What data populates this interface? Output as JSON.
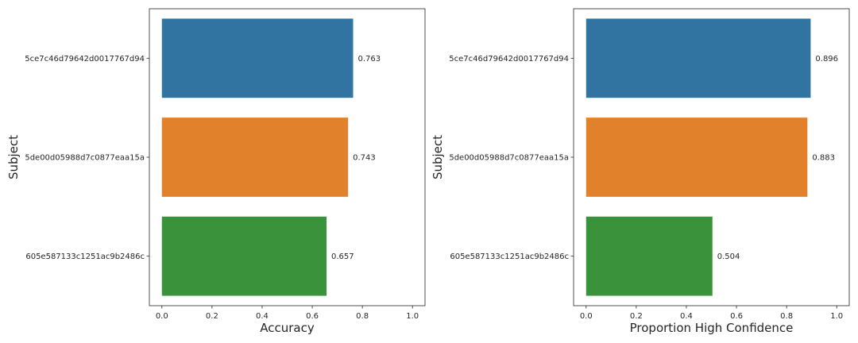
{
  "chart_data": [
    {
      "type": "bar",
      "orientation": "horizontal",
      "categories": [
        "5ce7c46d79642d0017767d94",
        "5de00d05988d7c0877eaa15a",
        "605e587133c1251ac9b2486c"
      ],
      "values": [
        0.763,
        0.743,
        0.657
      ],
      "data_labels": [
        "0.763",
        "0.743",
        "0.657"
      ],
      "xlabel": "Accuracy",
      "ylabel": "Subject",
      "xlim": [
        -0.05,
        1.05
      ],
      "xticks": [
        "0.0",
        "0.2",
        "0.4",
        "0.6",
        "0.8",
        "1.0"
      ],
      "grid": false,
      "colors": [
        "#3274a1",
        "#e1812c",
        "#3a923a"
      ]
    },
    {
      "type": "bar",
      "orientation": "horizontal",
      "categories": [
        "5ce7c46d79642d0017767d94",
        "5de00d05988d7c0877eaa15a",
        "605e587133c1251ac9b2486c"
      ],
      "values": [
        0.896,
        0.883,
        0.504
      ],
      "data_labels": [
        "0.896",
        "0.883",
        "0.504"
      ],
      "xlabel": "Proportion High Confidence",
      "ylabel": "Subject",
      "xlim": [
        -0.05,
        1.05
      ],
      "xticks": [
        "0.0",
        "0.2",
        "0.4",
        "0.6",
        "0.8",
        "1.0"
      ],
      "grid": false,
      "colors": [
        "#3274a1",
        "#e1812c",
        "#3a923a"
      ]
    }
  ]
}
